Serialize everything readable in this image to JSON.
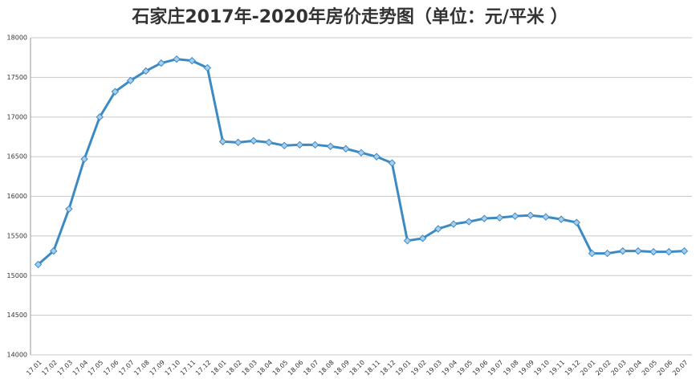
{
  "chart_data": {
    "type": "line",
    "title": "石家庄2017年-2020年房价走势图（单位：元/平米 ）",
    "categories": [
      "17.01",
      "17.02",
      "17.03",
      "17.04",
      "17.05",
      "17.06",
      "17.07",
      "17.08",
      "17.09",
      "17.10",
      "17.11",
      "17.12",
      "18.01",
      "18.02",
      "18.03",
      "18.04",
      "18.05",
      "18.06",
      "18.07",
      "18.08",
      "18.09",
      "18.10",
      "18.11",
      "18.12",
      "19.01",
      "19.02",
      "19.03",
      "19.04",
      "19.05",
      "19.06",
      "19.07",
      "19.08",
      "19.09",
      "19.10",
      "19.11",
      "19.12",
      "20.01",
      "20.02",
      "20.03",
      "20.04",
      "20.05",
      "20.06",
      "20.07"
    ],
    "values": [
      15140,
      15310,
      15840,
      16470,
      17000,
      17320,
      17460,
      17580,
      17680,
      17730,
      17710,
      17620,
      16690,
      16680,
      16700,
      16680,
      16640,
      16650,
      16650,
      16630,
      16600,
      16550,
      16500,
      16420,
      15440,
      15470,
      15590,
      15650,
      15680,
      15720,
      15730,
      15750,
      15760,
      15740,
      15710,
      15670,
      15280,
      15280,
      15310,
      15310,
      15300,
      15300,
      15310
    ],
    "color": "#3b8ac4",
    "ylim": [
      14000,
      18000
    ],
    "yticks": [
      14000,
      14500,
      15000,
      15500,
      16000,
      16500,
      17000,
      17500,
      18000
    ],
    "grid": true
  }
}
